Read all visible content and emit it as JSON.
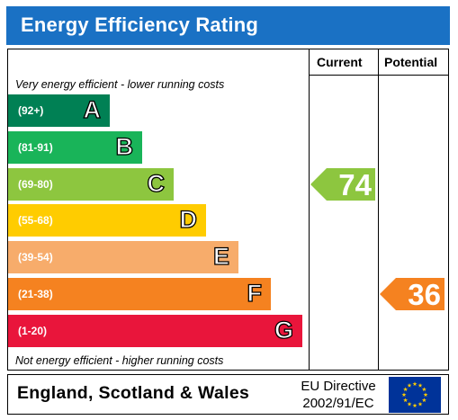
{
  "title": "Energy Efficiency Rating",
  "columns": {
    "current": "Current",
    "potential": "Potential"
  },
  "captions": {
    "top": "Very energy efficient - lower running costs",
    "bottom": "Not energy efficient - higher running costs"
  },
  "footer": {
    "region": "England, Scotland & Wales",
    "directive_line1": "EU Directive",
    "directive_line2": "2002/91/EC"
  },
  "colors": {
    "header": "#1a71c4",
    "current_arrow": "#8dc63f",
    "potential_arrow": "#f58220"
  },
  "chart_data": {
    "type": "bar",
    "bands": [
      {
        "range": "(92+)",
        "letter": "A",
        "color": "#008054"
      },
      {
        "range": "(81-91)",
        "letter": "B",
        "color": "#19b459"
      },
      {
        "range": "(69-80)",
        "letter": "C",
        "color": "#8dc63f"
      },
      {
        "range": "(55-68)",
        "letter": "D",
        "color": "#ffcc00"
      },
      {
        "range": "(39-54)",
        "letter": "E",
        "color": "#f7ac6b"
      },
      {
        "range": "(21-38)",
        "letter": "F",
        "color": "#f58220"
      },
      {
        "range": "(1-20)",
        "letter": "G",
        "color": "#e9153b"
      }
    ],
    "current": {
      "value": "74",
      "band": "C"
    },
    "potential": {
      "value": "36",
      "band": "F"
    }
  }
}
